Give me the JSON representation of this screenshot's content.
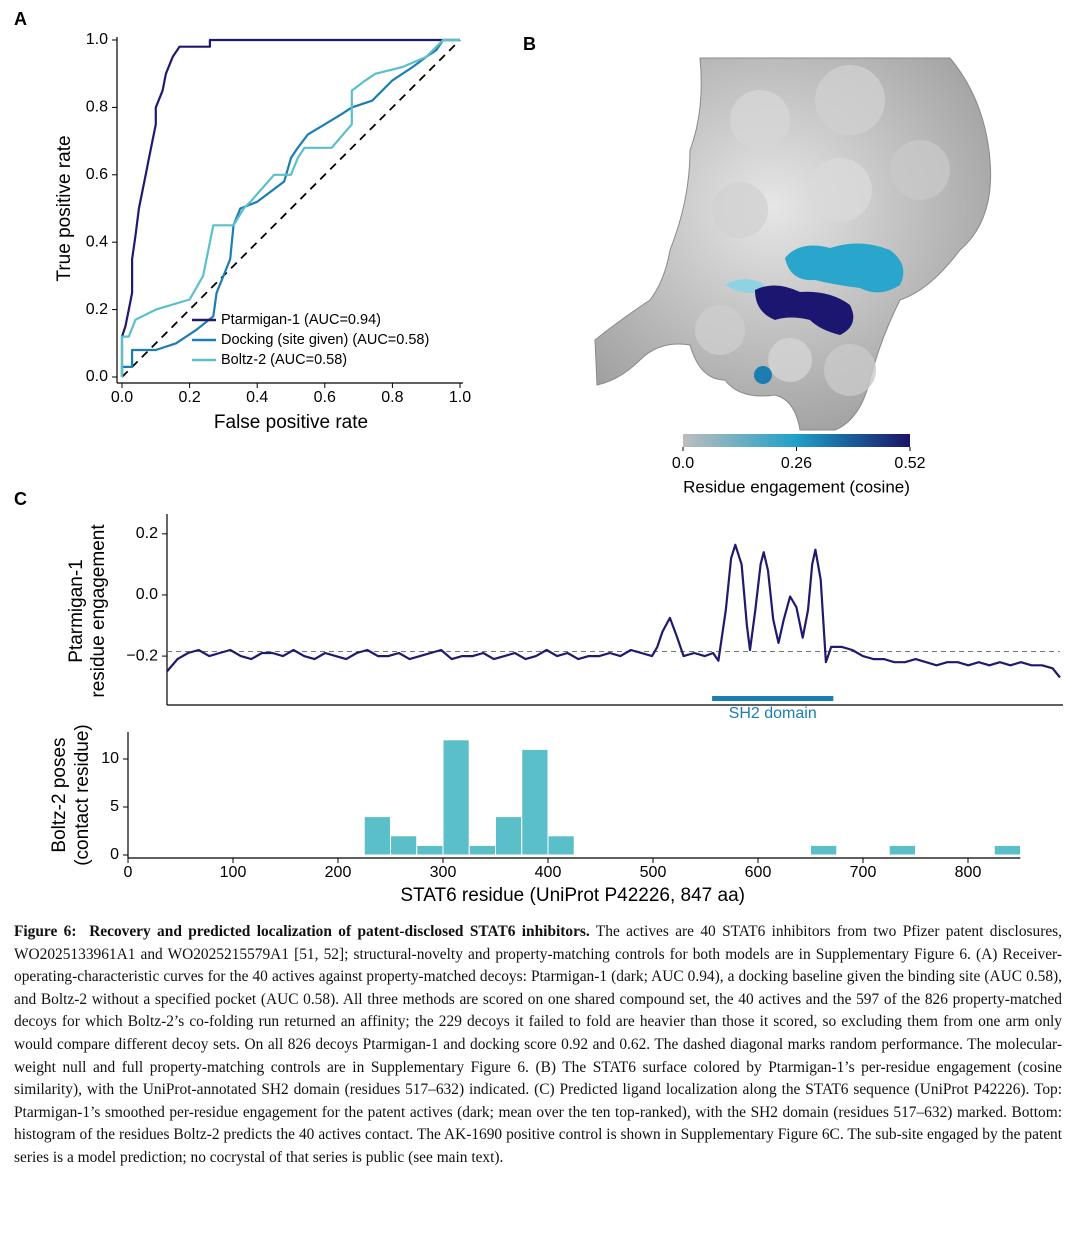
{
  "panel_labels": [
    "A",
    "B",
    "C"
  ],
  "chart_data": [
    {
      "type": "line",
      "xlabel": "False positive rate",
      "ylabel": "True positive rate",
      "xlim": [
        0,
        1
      ],
      "ylim": [
        0,
        1
      ],
      "xticks": [
        {
          "value": 0,
          "label": "0.0"
        },
        0.2,
        0.4,
        0.6,
        0.8,
        {
          "value": 1,
          "label": "1.0"
        }
      ],
      "yticks": [
        {
          "value": 0,
          "label": "0.0"
        },
        0.2,
        0.4,
        0.6,
        0.8,
        {
          "value": 1,
          "label": "1.0"
        }
      ],
      "diagonal": true,
      "legend": "lower right",
      "series": [
        {
          "name": "Ptarmigan-1 (AUC=0.94)",
          "color": "#1f1a6e",
          "x": [
            0,
            0,
            0.01,
            0.02,
            0.03,
            0.03,
            0.04,
            0.05,
            0.06,
            0.07,
            0.08,
            0.09,
            0.1,
            0.1,
            0.12,
            0.13,
            0.15,
            0.17,
            0.26,
            0.26,
            1
          ],
          "values": [
            0,
            0.12,
            0.15,
            0.2,
            0.25,
            0.35,
            0.42,
            0.5,
            0.55,
            0.6,
            0.65,
            0.7,
            0.75,
            0.8,
            0.85,
            0.9,
            0.95,
            0.98,
            0.98,
            1,
            1
          ]
        },
        {
          "name": "Docking (site given) (AUC=0.58)",
          "color": "#1c7db3",
          "x": [
            0,
            0,
            0.03,
            0.03,
            0.1,
            0.16,
            0.22,
            0.27,
            0.28,
            0.32,
            0.33,
            0.35,
            0.4,
            0.48,
            0.5,
            0.52,
            0.55,
            0.6,
            0.65,
            0.68,
            0.74,
            0.8,
            0.86,
            0.9,
            0.93,
            0.95,
            1
          ],
          "values": [
            0,
            0.03,
            0.03,
            0.08,
            0.08,
            0.1,
            0.14,
            0.18,
            0.25,
            0.35,
            0.45,
            0.5,
            0.52,
            0.58,
            0.65,
            0.68,
            0.72,
            0.75,
            0.78,
            0.8,
            0.82,
            0.88,
            0.92,
            0.95,
            0.97,
            1,
            1
          ]
        },
        {
          "name": "Boltz-2 (AUC=0.58)",
          "color": "#5bbfcc",
          "x": [
            0,
            0,
            0.02,
            0.04,
            0.1,
            0.2,
            0.24,
            0.26,
            0.27,
            0.33,
            0.36,
            0.38,
            0.45,
            0.5,
            0.52,
            0.54,
            0.62,
            0.68,
            0.68,
            0.72,
            0.75,
            0.83,
            0.9,
            0.92,
            0.95,
            1
          ],
          "values": [
            0,
            0.12,
            0.12,
            0.17,
            0.2,
            0.23,
            0.3,
            0.4,
            0.45,
            0.45,
            0.5,
            0.52,
            0.6,
            0.6,
            0.65,
            0.68,
            0.68,
            0.75,
            0.85,
            0.88,
            0.9,
            0.92,
            0.95,
            0.97,
            1,
            1
          ]
        }
      ]
    },
    {
      "type": "colorbar",
      "label": "Residue engagement (cosine)",
      "lim": [
        0,
        0.52
      ],
      "colors": [
        "#bdbdbd",
        "#1ea0c8",
        "#1a1466"
      ],
      "ticks": [
        {
          "value": 0,
          "label": "0.0"
        },
        0.26,
        0.52
      ]
    },
    {
      "type": "line",
      "ylabel": [
        "Ptarmigan-1",
        "residue engagement"
      ],
      "xlim": [
        0,
        847
      ],
      "ylim": [
        -0.36,
        0.255
      ],
      "yticks": [
        {
          "value": -0.2,
          "label": "−0.2"
        },
        {
          "value": 0,
          "label": "0.0"
        },
        0.2
      ],
      "hline": -0.185,
      "domain": {
        "label": "SH2 domain",
        "start": 517,
        "end": 632,
        "color": "#1c7db3"
      },
      "series": [
        {
          "color": "#1f1a6e",
          "x": [
            0,
            10,
            20,
            30,
            40,
            50,
            60,
            70,
            80,
            90,
            100,
            110,
            120,
            130,
            140,
            150,
            160,
            170,
            180,
            190,
            200,
            210,
            220,
            230,
            240,
            250,
            260,
            270,
            280,
            290,
            300,
            310,
            320,
            330,
            340,
            350,
            360,
            370,
            380,
            390,
            400,
            410,
            420,
            430,
            440,
            450,
            460,
            465,
            470,
            477,
            483,
            490,
            500,
            510,
            518,
            523,
            530,
            535,
            539,
            545,
            550,
            553,
            558,
            563,
            566,
            570,
            575,
            580,
            585,
            591,
            597,
            603,
            608,
            612,
            615,
            620,
            625,
            630,
            640,
            650,
            660,
            670,
            680,
            690,
            700,
            710,
            720,
            730,
            740,
            750,
            760,
            770,
            780,
            790,
            800,
            810,
            820,
            830,
            840,
            847
          ],
          "values": [
            -0.25,
            -0.21,
            -0.19,
            -0.18,
            -0.2,
            -0.19,
            -0.18,
            -0.2,
            -0.21,
            -0.19,
            -0.19,
            -0.2,
            -0.18,
            -0.2,
            -0.21,
            -0.19,
            -0.2,
            -0.21,
            -0.19,
            -0.18,
            -0.2,
            -0.2,
            -0.19,
            -0.21,
            -0.2,
            -0.19,
            -0.18,
            -0.21,
            -0.2,
            -0.2,
            -0.19,
            -0.21,
            -0.2,
            -0.19,
            -0.21,
            -0.2,
            -0.18,
            -0.2,
            -0.19,
            -0.21,
            -0.2,
            -0.2,
            -0.19,
            -0.2,
            -0.18,
            -0.19,
            -0.2,
            -0.17,
            -0.12,
            -0.075,
            -0.13,
            -0.2,
            -0.19,
            -0.2,
            -0.19,
            -0.215,
            -0.05,
            0.12,
            0.164,
            0.1,
            -0.1,
            -0.18,
            -0.05,
            0.1,
            0.14,
            0.08,
            -0.08,
            -0.157,
            -0.08,
            -0.005,
            -0.04,
            -0.14,
            -0.05,
            0.1,
            0.148,
            0.05,
            -0.22,
            -0.17,
            -0.17,
            -0.18,
            -0.2,
            -0.21,
            -0.21,
            -0.22,
            -0.22,
            -0.21,
            -0.22,
            -0.23,
            -0.22,
            -0.22,
            -0.23,
            -0.22,
            -0.23,
            -0.22,
            -0.23,
            -0.22,
            -0.23,
            -0.23,
            -0.24,
            -0.27
          ]
        }
      ]
    },
    {
      "type": "histogram",
      "xlabel": "STAT6 residue (UniProt P42226, 847 aa)",
      "ylabel": [
        "Boltz-2 poses",
        "(contact residue)"
      ],
      "xlim": [
        0,
        847
      ],
      "ylim": [
        0,
        12.5
      ],
      "color": "#5bbfca",
      "xticks": [
        0,
        100,
        200,
        300,
        400,
        500,
        600,
        700,
        800
      ],
      "yticks": [
        0,
        5,
        10
      ],
      "bins": [
        225,
        250,
        275,
        300,
        325,
        350,
        375,
        400,
        425,
        450,
        475,
        500,
        525,
        550,
        575,
        600,
        625,
        650,
        675,
        700,
        725,
        750,
        775,
        800,
        825,
        850
      ],
      "values": [
        4,
        2,
        1,
        12,
        1,
        4,
        11,
        2,
        0,
        0,
        0,
        0,
        0,
        0,
        0,
        0,
        0,
        1,
        0,
        0,
        1,
        0,
        0,
        0,
        1
      ]
    }
  ],
  "caption": {
    "label": "Figure 6:",
    "title": "Recovery and predicted localization of patent-disclosed STAT6 inhibitors.",
    "text": "The actives are 40 STAT6 inhibitors from two Pfizer patent disclosures, WO2025133961A1 and WO2025215579A1 [51, 52]; structural-novelty and property-matching controls for both models are in Supplementary Figure 6. (A) Receiver-operating-characteristic curves for the 40 actives against property-matched decoys: Ptarmigan-1 (dark; AUC 0.94), a docking baseline given the binding site (AUC 0.58), and Boltz-2 without a specified pocket (AUC 0.58). All three methods are scored on one shared compound set, the 40 actives and the 597 of the 826 property-matched decoys for which Boltz-2’s co-folding run returned an affinity; the 229 decoys it failed to fold are heavier than those it scored, so excluding them from one arm only would compare different decoy sets. On all 826 decoys Ptarmigan-1 and docking score 0.92 and 0.62. The dashed diagonal marks random performance. The molecular-weight null and full property-matching controls are in Supplementary Figure 6. (B) The STAT6 surface colored by Ptarmigan-1’s per-residue engagement (cosine similarity), with the UniProt-annotated SH2 domain (residues 517–632) indicated. (C) Predicted ligand localization along the STAT6 sequence (UniProt P42226). Top: Ptarmigan-1’s smoothed per-residue engagement for the patent actives (dark; mean over the ten top-ranked), with the SH2 domain (residues 517–632) marked. Bottom: histogram of the residues Boltz-2 predicts the 40 actives contact. The AK-1690 positive control is shown in Supplementary Figure 6C. The sub-site engaged by the patent series is a model prediction; no cocrystal of that series is public (see main text)."
  }
}
